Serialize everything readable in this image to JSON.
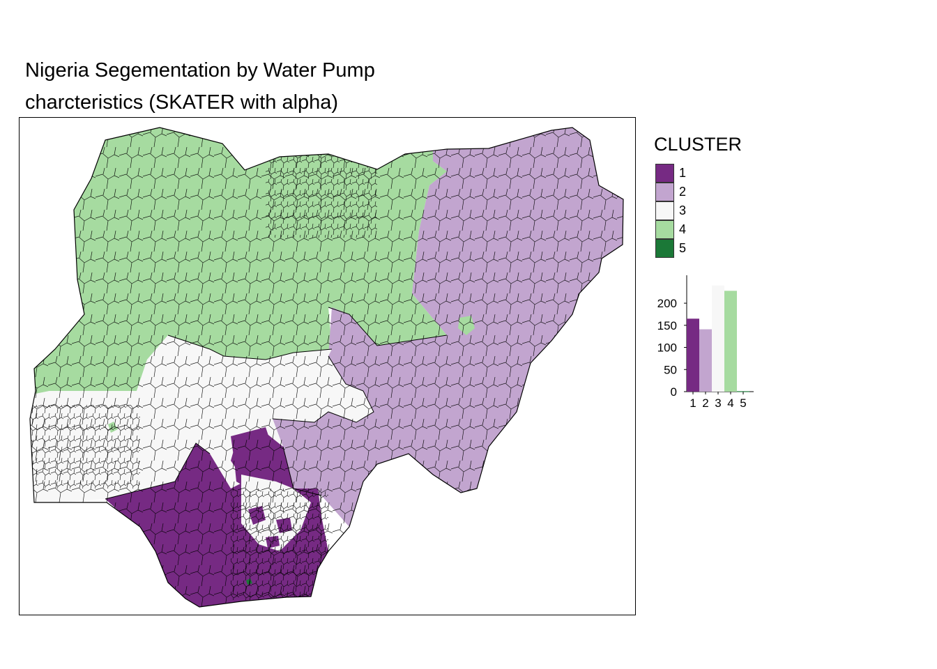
{
  "title": {
    "line1": "Nigeria Segementation by Water Pump",
    "line2": "charcteristics (SKATER with alpha)"
  },
  "legend": {
    "title": "CLUSTER",
    "items": [
      {
        "label": "1",
        "color": "#762a83"
      },
      {
        "label": "2",
        "color": "#c2a5cf"
      },
      {
        "label": "3",
        "color": "#f7f7f7"
      },
      {
        "label": "4",
        "color": "#a6dba0"
      },
      {
        "label": "5",
        "color": "#1b7837"
      }
    ]
  },
  "map": {
    "regions": [
      {
        "cluster": "4",
        "description": "north-west and north-central"
      },
      {
        "cluster": "2",
        "description": "north-east and east"
      },
      {
        "cluster": "3",
        "description": "south-west and middle belt"
      },
      {
        "cluster": "1",
        "description": "south and Niger Delta"
      },
      {
        "cluster": "5",
        "description": "single LGA in the Niger Delta"
      }
    ]
  },
  "chart_data": {
    "type": "bar",
    "categories": [
      "1",
      "2",
      "3",
      "4",
      "5"
    ],
    "values": [
      165,
      141,
      240,
      228,
      1
    ],
    "colors": [
      "#762a83",
      "#c2a5cf",
      "#f7f7f7",
      "#a6dba0",
      "#1b7837"
    ],
    "yticks": [
      0,
      50,
      100,
      150,
      200
    ],
    "ylim": [
      0,
      260
    ],
    "title": "",
    "xlabel": "",
    "ylabel": ""
  }
}
